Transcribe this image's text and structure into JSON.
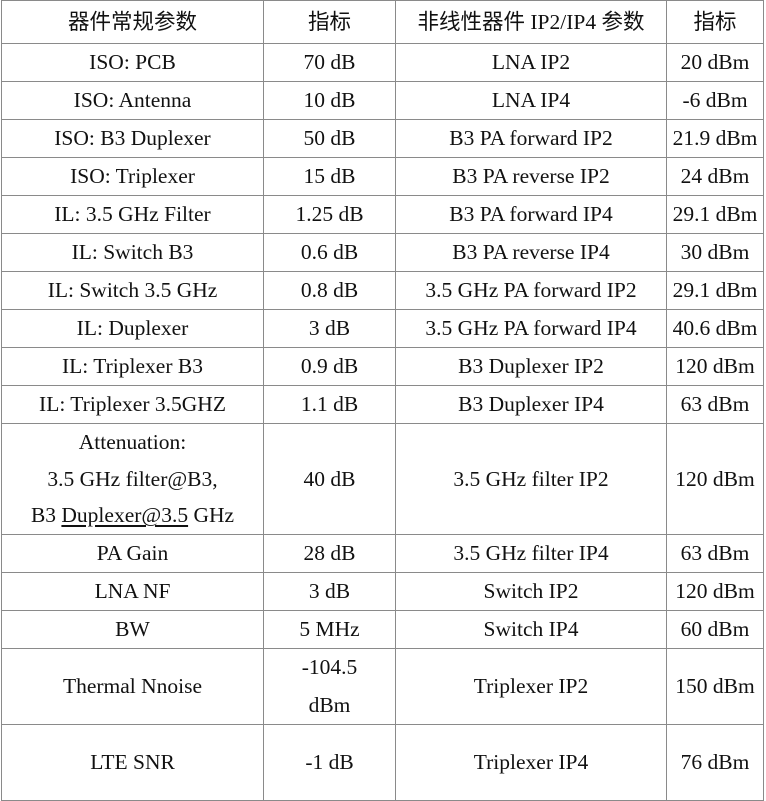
{
  "table": {
    "headers": [
      "器件常规参数",
      "指标",
      "非线性器件 IP2/IP4 参数",
      "指标"
    ],
    "rows": [
      {
        "param": "ISO: PCB",
        "value": "70 dB",
        "nl_param": "LNA IP2",
        "nl_value": "20 dBm"
      },
      {
        "param": "ISO: Antenna",
        "value": "10 dB",
        "nl_param": "LNA IP4",
        "nl_value": "-6 dBm"
      },
      {
        "param": "ISO: B3 Duplexer",
        "value": "50 dB",
        "nl_param": "B3 PA forward IP2",
        "nl_value": "21.9 dBm"
      },
      {
        "param": "ISO: Triplexer",
        "value": "15 dB",
        "nl_param": "B3 PA reverse IP2",
        "nl_value": "24 dBm"
      },
      {
        "param": "IL: 3.5 GHz Filter",
        "value": "1.25 dB",
        "nl_param": "B3 PA forward IP4",
        "nl_value": "29.1 dBm"
      },
      {
        "param": "IL: Switch B3",
        "value": "0.6 dB",
        "nl_param": "B3 PA reverse IP4",
        "nl_value": "30 dBm"
      },
      {
        "param": "IL: Switch 3.5 GHz",
        "value": "0.8 dB",
        "nl_param": "3.5 GHz PA forward IP2",
        "nl_value": "29.1 dBm"
      },
      {
        "param": "IL: Duplexer",
        "value": "3 dB",
        "nl_param": "3.5 GHz PA forward IP4",
        "nl_value": "40.6 dBm"
      },
      {
        "param": "IL: Triplexer B3",
        "value": "0.9 dB",
        "nl_param": "B3 Duplexer IP2",
        "nl_value": "120 dBm"
      },
      {
        "param": "IL: Triplexer 3.5GHZ",
        "value": "1.1 dB",
        "nl_param": "B3 Duplexer IP4",
        "nl_value": "63 dBm"
      }
    ],
    "attenuation_row": {
      "line1": "Attenuation:",
      "line2": "3.5 GHz filter@B3,",
      "line3_prefix": "B3 ",
      "line3_underlined": "Duplexer@3.5",
      "line3_suffix": " GHz",
      "value": "40 dB",
      "nl_param": "3.5 GHz filter IP2",
      "nl_value": "120 dBm"
    },
    "rows2": [
      {
        "param": "PA Gain",
        "value": "28 dB",
        "nl_param": "3.5 GHz filter IP4",
        "nl_value": "63 dBm"
      },
      {
        "param": "LNA NF",
        "value": "3 dB",
        "nl_param": "Switch IP2",
        "nl_value": "120 dBm"
      },
      {
        "param": "BW",
        "value": "5 MHz",
        "nl_param": "Switch IP4",
        "nl_value": "60 dBm"
      }
    ],
    "thermal_row": {
      "param": "Thermal Nnoise",
      "value_line1": "-104.5",
      "value_line2": "dBm",
      "nl_param": "Triplexer IP2",
      "nl_value": "150 dBm"
    },
    "last_row": {
      "param": "LTE SNR",
      "value": "-1 dB",
      "nl_param": "Triplexer IP4",
      "nl_value": "76 dBm"
    }
  }
}
